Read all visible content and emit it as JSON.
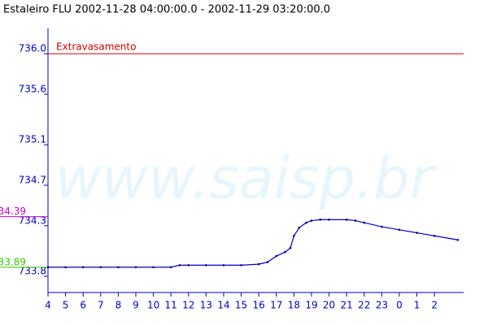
{
  "chart_data": {
    "type": "line",
    "title": "Estaleiro FLU 2002-11-28 04:00:00.0 - 2002-11-29 03:20:00.0",
    "watermark": "www.saisp.br",
    "x": [
      4,
      5,
      6,
      7,
      8,
      9,
      10,
      11,
      11.5,
      12,
      13,
      14,
      15,
      16,
      16.5,
      17,
      17.5,
      17.8,
      18,
      18.3,
      18.7,
      19,
      19.5,
      20,
      21,
      21.5,
      22,
      23,
      24,
      25,
      26,
      27.33
    ],
    "series": [
      {
        "color": "#0000cc",
        "values": [
          733.89,
          733.89,
          733.89,
          733.89,
          733.89,
          733.89,
          733.89,
          733.89,
          733.91,
          733.91,
          733.91,
          733.91,
          733.91,
          733.92,
          733.94,
          734.0,
          734.04,
          734.08,
          734.2,
          734.28,
          734.33,
          734.35,
          734.36,
          734.36,
          734.36,
          734.35,
          734.33,
          734.29,
          734.26,
          734.23,
          734.2,
          734.16
        ]
      }
    ],
    "xlim": [
      4,
      27.66
    ],
    "xticks": [
      4,
      5,
      6,
      7,
      8,
      9,
      10,
      11,
      12,
      13,
      14,
      15,
      16,
      17,
      18,
      19,
      20,
      21,
      22,
      23,
      {
        "value": 24,
        "label": "0"
      },
      {
        "value": 25,
        "label": "1"
      },
      {
        "value": 26,
        "label": "2"
      }
    ],
    "ylim": [
      733.64,
      736.25
    ],
    "yticks": [
      733.8,
      734.3,
      734.7,
      735.1,
      735.6,
      {
        "value": 736,
        "label": "736.0"
      }
    ],
    "threshold": {
      "label": "Extravasamento",
      "value": 736,
      "color": "#cc0000"
    },
    "markers": [
      {
        "value": 734.39,
        "color": "#cc00cc"
      },
      {
        "value": 733.89,
        "color": "#33cc00"
      }
    ]
  }
}
